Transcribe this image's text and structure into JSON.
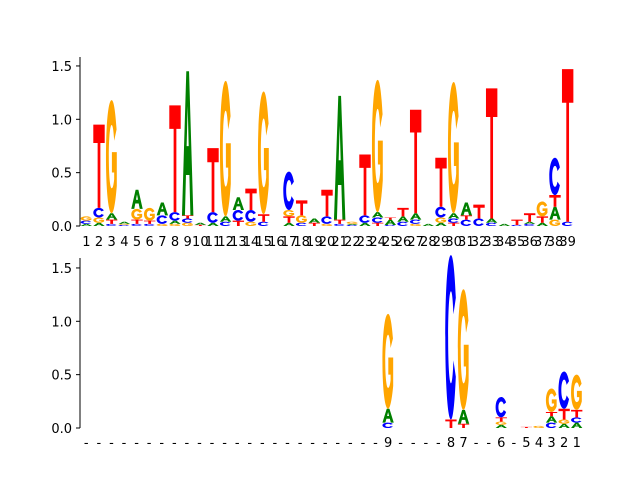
{
  "chart_data": [
    {
      "type": "sequence-logo",
      "title": "",
      "ylim": [
        0,
        1.6
      ],
      "yticks": [
        0.0,
        0.5,
        1.0,
        1.5
      ],
      "ytick_labels": [
        "0.0",
        "0.5",
        "1.0",
        "1.5"
      ],
      "positions": [
        "1",
        "2",
        "3",
        "4",
        "5",
        "6",
        "7",
        "8",
        "9",
        "10",
        "11",
        "12",
        "13",
        "14",
        "15",
        "16",
        "17",
        "18",
        "19",
        "20",
        "21",
        "22",
        "23",
        "24",
        "25",
        "26",
        "27",
        "28",
        "29",
        "30",
        "31",
        "32",
        "33",
        "34",
        "35",
        "36",
        "37",
        "38",
        "39"
      ],
      "columns": [
        [
          [
            "A",
            0.02
          ],
          [
            "C",
            0.03
          ],
          [
            "G",
            0.04
          ]
        ],
        [
          [
            "A",
            0.03
          ],
          [
            "G",
            0.05
          ],
          [
            "C",
            0.09
          ],
          [
            "T",
            0.78
          ]
        ],
        [
          [
            "C",
            0.02
          ],
          [
            "T",
            0.04
          ],
          [
            "A",
            0.06
          ],
          [
            "G",
            1.06
          ]
        ],
        [
          [
            "C",
            0.01
          ],
          [
            "G",
            0.01
          ],
          [
            "A",
            0.02
          ]
        ],
        [
          [
            "C",
            0.02
          ],
          [
            "T",
            0.04
          ],
          [
            "G",
            0.1
          ],
          [
            "A",
            0.18
          ]
        ],
        [
          [
            "C",
            0.02
          ],
          [
            "T",
            0.03
          ],
          [
            "G",
            0.12
          ]
        ],
        [
          [
            "G",
            0.02
          ],
          [
            "C",
            0.08
          ],
          [
            "A",
            0.12
          ]
        ],
        [
          [
            "G",
            0.02
          ],
          [
            "A",
            0.03
          ],
          [
            "C",
            0.08
          ],
          [
            "T",
            1.0
          ]
        ],
        [
          [
            "G",
            0.03
          ],
          [
            "C",
            0.04
          ],
          [
            "T",
            0.03
          ],
          [
            "A",
            1.35
          ]
        ],
        [
          [
            "T",
            0.01
          ],
          [
            "A",
            0.02
          ]
        ],
        [
          [
            "A",
            0.03
          ],
          [
            "C",
            0.1
          ],
          [
            "T",
            0.6
          ]
        ],
        [
          [
            "C",
            0.04
          ],
          [
            "A",
            0.05
          ],
          [
            "G",
            1.27
          ]
        ],
        [
          [
            "T",
            0.05
          ],
          [
            "C",
            0.1
          ],
          [
            "A",
            0.12
          ]
        ],
        [
          [
            "G",
            0.04
          ],
          [
            "C",
            0.11
          ],
          [
            "T",
            0.2
          ]
        ],
        [
          [
            "C",
            0.04
          ],
          [
            "T",
            0.07
          ],
          [
            "G",
            1.15
          ]
        ],
        [],
        [
          [
            "A",
            0.03
          ],
          [
            "T",
            0.06
          ],
          [
            "G",
            0.06
          ],
          [
            "C",
            0.36
          ]
        ],
        [
          [
            "C",
            0.03
          ],
          [
            "G",
            0.07
          ],
          [
            "T",
            0.14
          ]
        ],
        [
          [
            "T",
            0.03
          ],
          [
            "A",
            0.04
          ]
        ],
        [
          [
            "G",
            0.02
          ],
          [
            "C",
            0.07
          ],
          [
            "T",
            0.25
          ]
        ],
        [
          [
            "C",
            0.02
          ],
          [
            "T",
            0.04
          ],
          [
            "A",
            1.16
          ]
        ],
        [
          [
            "C",
            0.01
          ],
          [
            "A",
            0.01
          ],
          [
            "G",
            0.02
          ]
        ],
        [
          [
            "A",
            0.03
          ],
          [
            "C",
            0.07
          ],
          [
            "T",
            0.57
          ]
        ],
        [
          [
            "T",
            0.03
          ],
          [
            "C",
            0.05
          ],
          [
            "A",
            0.05
          ],
          [
            "G",
            1.24
          ]
        ],
        [
          [
            "C",
            0.01
          ],
          [
            "A",
            0.05
          ],
          [
            "T",
            0.02
          ]
        ],
        [
          [
            "C",
            0.04
          ],
          [
            "A",
            0.05
          ],
          [
            "T",
            0.08
          ]
        ],
        [
          [
            "G",
            0.02
          ],
          [
            "C",
            0.04
          ],
          [
            "A",
            0.06
          ],
          [
            "T",
            0.97
          ]
        ],
        [
          [
            "A",
            0.02
          ]
        ],
        [
          [
            "A",
            0.03
          ],
          [
            "G",
            0.05
          ],
          [
            "C",
            0.1
          ],
          [
            "T",
            0.46
          ]
        ],
        [
          [
            "T",
            0.03
          ],
          [
            "C",
            0.04
          ],
          [
            "A",
            0.05
          ],
          [
            "G",
            1.23
          ]
        ],
        [
          [
            "C",
            0.06
          ],
          [
            "T",
            0.04
          ],
          [
            "A",
            0.12
          ]
        ],
        [
          [
            "C",
            0.07
          ],
          [
            "T",
            0.13
          ]
        ],
        [
          [
            "C",
            0.03
          ],
          [
            "A",
            0.04
          ],
          [
            "T",
            1.22
          ]
        ],
        [
          [
            "A",
            0.02
          ]
        ],
        [
          [
            "C",
            0.01
          ],
          [
            "T",
            0.05
          ]
        ],
        [
          [
            "C",
            0.02
          ],
          [
            "A",
            0.02
          ],
          [
            "T",
            0.08
          ]
        ],
        [
          [
            "A",
            0.03
          ],
          [
            "T",
            0.06
          ],
          [
            "G",
            0.14
          ]
        ],
        [
          [
            "G",
            0.06
          ],
          [
            "A",
            0.12
          ],
          [
            "T",
            0.11
          ],
          [
            "C",
            0.35
          ]
        ],
        [
          [
            "C",
            0.04
          ],
          [
            "T",
            1.43
          ]
        ]
      ]
    },
    {
      "type": "sequence-logo",
      "title": "",
      "ylim": [
        0,
        1.6
      ],
      "yticks": [
        0.0,
        0.5,
        1.0,
        1.5
      ],
      "ytick_labels": [
        "0.0",
        "0.5",
        "1.0",
        "1.5"
      ],
      "positions": [
        "-",
        "-",
        "-",
        "-",
        "-",
        "-",
        "-",
        "-",
        "-",
        "-",
        "-",
        "-",
        "-",
        "-",
        "-",
        "-",
        "-",
        "-",
        "-",
        "-",
        "-",
        "-",
        "-",
        "-",
        "9",
        "-",
        "-",
        "-",
        "-",
        "8",
        "7",
        "-",
        "-",
        "6",
        "-",
        "5",
        "4",
        "3",
        "2",
        "1"
      ],
      "columns": [
        [],
        [],
        [],
        [],
        [],
        [],
        [],
        [],
        [],
        [],
        [],
        [],
        [],
        [],
        [],
        [],
        [],
        [],
        [],
        [],
        [],
        [],
        [],
        [],
        [
          [
            "C",
            0.05
          ],
          [
            "A",
            0.13
          ],
          [
            "G",
            0.89
          ]
        ],
        [],
        [],
        [],
        [],
        [
          [
            "T",
            0.08
          ],
          [
            "C",
            1.54
          ]
        ],
        [
          [
            "T",
            0.04
          ],
          [
            "A",
            0.13
          ],
          [
            "G",
            1.13
          ]
        ],
        [],
        [],
        [
          [
            "A",
            0.03
          ],
          [
            "G",
            0.03
          ],
          [
            "T",
            0.04
          ],
          [
            "C",
            0.19
          ]
        ],
        [],
        [
          [
            "T",
            0.01
          ]
        ],
        [
          [
            "G",
            0.02
          ]
        ],
        [
          [
            "C",
            0.05
          ],
          [
            "A",
            0.06
          ],
          [
            "T",
            0.04
          ],
          [
            "G",
            0.22
          ]
        ],
        [
          [
            "A",
            0.04
          ],
          [
            "G",
            0.04
          ],
          [
            "T",
            0.1
          ],
          [
            "C",
            0.35
          ]
        ],
        [
          [
            "A",
            0.05
          ],
          [
            "C",
            0.05
          ],
          [
            "T",
            0.07
          ],
          [
            "G",
            0.33
          ]
        ]
      ]
    }
  ]
}
